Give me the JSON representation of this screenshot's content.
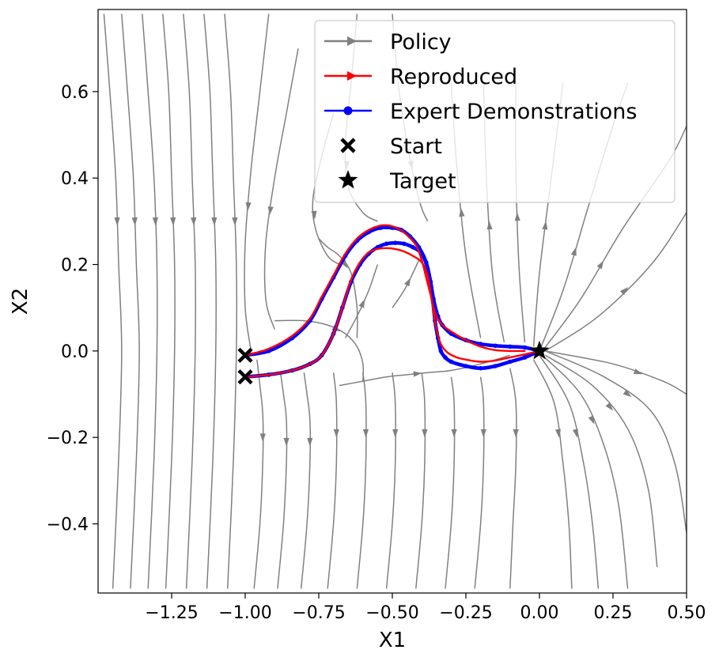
{
  "chart_data": {
    "type": "line",
    "title": "",
    "xlabel": "X1",
    "ylabel": "X2",
    "xlim": [
      -1.5,
      0.5
    ],
    "ylim": [
      -0.56,
      0.79
    ],
    "xticks": [
      -1.25,
      -1.0,
      -0.75,
      -0.5,
      -0.25,
      0.0,
      0.25,
      0.5
    ],
    "xtick_labels": [
      "−1.25",
      "−1.00",
      "−0.75",
      "−0.50",
      "−0.25",
      "0.00",
      "0.25",
      "0.50"
    ],
    "yticks": [
      0.6,
      0.4,
      0.2,
      0.0,
      -0.2,
      -0.4
    ],
    "ytick_labels": [
      "0.6",
      "0.4",
      "0.2",
      "0.0",
      "−0.2",
      "−0.4"
    ],
    "grid": false,
    "legend_position": "top-right",
    "colors": {
      "policy": "#808080",
      "reproduced": "#ff0000",
      "expert": "#0000ff",
      "markers": "#000000"
    },
    "legend": [
      {
        "key": "policy",
        "label": "Policy"
      },
      {
        "key": "reproduced",
        "label": "Reproduced"
      },
      {
        "key": "expert",
        "label": "Expert Demonstrations"
      },
      {
        "key": "start",
        "label": "Start"
      },
      {
        "key": "target",
        "label": "Target"
      }
    ],
    "series": [
      {
        "name": "Expert Demonstrations",
        "x": [
          -1.0,
          -0.92,
          -0.84,
          -0.78,
          -0.74,
          -0.7,
          -0.66,
          -0.62,
          -0.58,
          -0.54,
          -0.5,
          -0.47,
          -0.44,
          -0.41,
          -0.385,
          -0.37,
          -0.36,
          -0.345,
          -0.33,
          -0.3,
          -0.25,
          -0.2,
          -0.15,
          -0.1,
          -0.05,
          0.0
        ],
        "y": [
          -0.01,
          0.0,
          0.03,
          0.07,
          0.12,
          0.17,
          0.22,
          0.255,
          0.275,
          0.285,
          0.285,
          0.28,
          0.265,
          0.24,
          0.205,
          0.16,
          0.12,
          0.08,
          0.06,
          0.04,
          0.025,
          0.016,
          0.012,
          0.01,
          0.008,
          0.0
        ]
      },
      {
        "name": "Expert Demonstrations",
        "x": [
          -1.0,
          -0.92,
          -0.84,
          -0.78,
          -0.74,
          -0.7,
          -0.67,
          -0.64,
          -0.61,
          -0.58,
          -0.55,
          -0.52,
          -0.49,
          -0.46,
          -0.43,
          -0.4,
          -0.38,
          -0.365,
          -0.355,
          -0.345,
          -0.335,
          -0.32,
          -0.3,
          -0.25,
          -0.2,
          -0.15,
          -0.1,
          -0.05,
          0.0
        ],
        "y": [
          -0.06,
          -0.055,
          -0.045,
          -0.03,
          -0.01,
          0.04,
          0.1,
          0.16,
          0.2,
          0.225,
          0.24,
          0.248,
          0.25,
          0.248,
          0.24,
          0.225,
          0.19,
          0.13,
          0.07,
          0.03,
          0.0,
          -0.015,
          -0.025,
          -0.035,
          -0.04,
          -0.035,
          -0.025,
          -0.015,
          0.0
        ]
      },
      {
        "name": "Reproduced",
        "x": [
          -1.0,
          -0.92,
          -0.84,
          -0.78,
          -0.74,
          -0.7,
          -0.66,
          -0.62,
          -0.58,
          -0.54,
          -0.51,
          -0.48,
          -0.45,
          -0.42,
          -0.4,
          -0.385,
          -0.37,
          -0.36,
          -0.35,
          -0.33,
          -0.3,
          -0.25,
          -0.2,
          -0.15,
          -0.1,
          -0.05
        ],
        "y": [
          -0.01,
          0.005,
          0.035,
          0.075,
          0.125,
          0.175,
          0.225,
          0.26,
          0.28,
          0.29,
          0.29,
          0.283,
          0.268,
          0.245,
          0.21,
          0.17,
          0.13,
          0.1,
          0.08,
          0.06,
          0.045,
          0.025,
          0.01,
          0.002,
          0.0,
          0.0
        ]
      },
      {
        "name": "Reproduced",
        "x": [
          -1.0,
          -0.92,
          -0.84,
          -0.78,
          -0.74,
          -0.7,
          -0.67,
          -0.64,
          -0.61,
          -0.58,
          -0.55,
          -0.52,
          -0.49,
          -0.46,
          -0.43,
          -0.4,
          -0.38,
          -0.37,
          -0.36,
          -0.35,
          -0.34,
          -0.33,
          -0.31,
          -0.28,
          -0.25,
          -0.2,
          -0.15,
          -0.1,
          -0.05,
          0.0
        ],
        "y": [
          -0.06,
          -0.055,
          -0.045,
          -0.03,
          -0.01,
          0.04,
          0.1,
          0.165,
          0.205,
          0.228,
          0.236,
          0.238,
          0.236,
          0.23,
          0.22,
          0.205,
          0.175,
          0.135,
          0.09,
          0.05,
          0.025,
          0.01,
          -0.005,
          -0.015,
          -0.02,
          -0.025,
          -0.022,
          -0.015,
          -0.008,
          0.0
        ]
      }
    ],
    "start_points": [
      [
        -1.0,
        -0.01
      ],
      [
        -1.0,
        -0.06
      ]
    ],
    "target_point": [
      0.0,
      0.0
    ],
    "policy_streamlines": [
      {
        "x": [
          -1.48,
          -1.46,
          -1.44,
          -1.43,
          -1.42,
          -1.43,
          -1.45
        ],
        "y": [
          0.78,
          0.6,
          0.4,
          0.2,
          0.0,
          -0.25,
          -0.55
        ]
      },
      {
        "x": [
          -1.42,
          -1.4,
          -1.38,
          -1.37,
          -1.36,
          -1.37,
          -1.39
        ],
        "y": [
          0.78,
          0.6,
          0.4,
          0.2,
          0.0,
          -0.25,
          -0.55
        ]
      },
      {
        "x": [
          -1.35,
          -1.33,
          -1.31,
          -1.3,
          -1.3,
          -1.31,
          -1.33
        ],
        "y": [
          0.78,
          0.6,
          0.4,
          0.2,
          0.0,
          -0.25,
          -0.55
        ]
      },
      {
        "x": [
          -1.28,
          -1.26,
          -1.25,
          -1.24,
          -1.24,
          -1.25,
          -1.27
        ],
        "y": [
          0.78,
          0.6,
          0.4,
          0.2,
          0.0,
          -0.25,
          -0.55
        ]
      },
      {
        "x": [
          -1.21,
          -1.19,
          -1.18,
          -1.17,
          -1.17,
          -1.18,
          -1.2
        ],
        "y": [
          0.78,
          0.6,
          0.4,
          0.2,
          0.0,
          -0.25,
          -0.55
        ]
      },
      {
        "x": [
          -1.14,
          -1.12,
          -1.11,
          -1.1,
          -1.1,
          -1.11,
          -1.13
        ],
        "y": [
          0.78,
          0.6,
          0.4,
          0.2,
          0.0,
          -0.25,
          -0.55
        ]
      },
      {
        "x": [
          -1.07,
          -1.05,
          -1.04,
          -1.03,
          -1.03,
          -1.04,
          -1.06
        ],
        "y": [
          0.78,
          0.6,
          0.4,
          0.2,
          0.0,
          -0.25,
          -0.55
        ]
      },
      {
        "x": [
          -0.96,
          -0.95,
          -0.94,
          -0.94,
          -0.95,
          -0.97
        ],
        "y": [
          -0.02,
          -0.08,
          -0.15,
          -0.25,
          -0.4,
          -0.55
        ]
      },
      {
        "x": [
          -0.88,
          -0.87,
          -0.86,
          -0.86,
          -0.87,
          -0.89
        ],
        "y": [
          -0.05,
          -0.1,
          -0.16,
          -0.26,
          -0.4,
          -0.55
        ]
      },
      {
        "x": [
          -0.8,
          -0.79,
          -0.78,
          -0.78,
          -0.79,
          -0.81
        ],
        "y": [
          -0.05,
          -0.1,
          -0.16,
          -0.26,
          -0.4,
          -0.55
        ]
      },
      {
        "x": [
          -0.7,
          -0.69,
          -0.69,
          -0.7,
          -0.72
        ],
        "y": [
          -0.05,
          -0.12,
          -0.26,
          -0.4,
          -0.55
        ]
      },
      {
        "x": [
          -0.6,
          -0.59,
          -0.59,
          -0.6,
          -0.62
        ],
        "y": [
          -0.05,
          -0.12,
          -0.26,
          -0.4,
          -0.55
        ]
      },
      {
        "x": [
          -0.5,
          -0.49,
          -0.49,
          -0.5,
          -0.52
        ],
        "y": [
          -0.05,
          -0.12,
          -0.26,
          -0.4,
          -0.55
        ]
      },
      {
        "x": [
          -0.4,
          -0.39,
          -0.39,
          -0.4,
          -0.42
        ],
        "y": [
          -0.05,
          -0.12,
          -0.26,
          -0.4,
          -0.55
        ]
      },
      {
        "x": [
          -0.3,
          -0.29,
          -0.29,
          -0.3,
          -0.32
        ],
        "y": [
          -0.06,
          -0.12,
          -0.26,
          -0.4,
          -0.55
        ]
      },
      {
        "x": [
          -0.2,
          -0.19,
          -0.19,
          -0.2,
          -0.22
        ],
        "y": [
          -0.06,
          -0.12,
          -0.26,
          -0.4,
          -0.55
        ]
      },
      {
        "x": [
          -0.1,
          -0.08,
          -0.08,
          -0.09,
          -0.1
        ],
        "y": [
          -0.04,
          -0.12,
          -0.26,
          -0.4,
          -0.55
        ]
      },
      {
        "x": [
          -0.02,
          0.05,
          0.08,
          0.1,
          0.11
        ],
        "y": [
          -0.02,
          -0.12,
          -0.26,
          -0.4,
          -0.55
        ]
      },
      {
        "x": [
          0.0,
          0.1,
          0.15,
          0.18,
          0.2
        ],
        "y": [
          -0.01,
          -0.12,
          -0.26,
          -0.4,
          -0.55
        ]
      },
      {
        "x": [
          0.01,
          0.14,
          0.22,
          0.27,
          0.3
        ],
        "y": [
          -0.01,
          -0.1,
          -0.22,
          -0.36,
          -0.55
        ]
      },
      {
        "x": [
          0.02,
          0.18,
          0.3,
          0.37,
          0.4
        ],
        "y": [
          -0.01,
          -0.08,
          -0.18,
          -0.32,
          -0.5
        ]
      },
      {
        "x": [
          0.02,
          0.22,
          0.38,
          0.46,
          0.5
        ],
        "y": [
          0.0,
          -0.06,
          -0.14,
          -0.26,
          -0.42
        ]
      },
      {
        "x": [
          0.02,
          0.25,
          0.42,
          0.5
        ],
        "y": [
          0.0,
          -0.03,
          -0.07,
          -0.1
        ]
      },
      {
        "x": [
          0.02,
          0.2,
          0.38,
          0.5
        ],
        "y": [
          0.0,
          0.08,
          0.2,
          0.32
        ]
      },
      {
        "x": [
          0.01,
          0.14,
          0.28,
          0.44,
          0.5
        ],
        "y": [
          0.0,
          0.12,
          0.28,
          0.44,
          0.52
        ]
      },
      {
        "x": [
          0.0,
          0.08,
          0.16,
          0.24,
          0.3
        ],
        "y": [
          0.0,
          0.14,
          0.32,
          0.5,
          0.62
        ]
      },
      {
        "x": [
          -0.02,
          0.0,
          0.04,
          0.08
        ],
        "y": [
          0.01,
          0.18,
          0.4,
          0.62
        ]
      },
      {
        "x": [
          -0.05,
          -0.07,
          -0.08,
          -0.08
        ],
        "y": [
          0.02,
          0.2,
          0.42,
          0.62
        ]
      },
      {
        "x": [
          -0.12,
          -0.16,
          -0.18,
          -0.19
        ],
        "y": [
          0.02,
          0.18,
          0.4,
          0.62
        ]
      },
      {
        "x": [
          -0.2,
          -0.25,
          -0.28,
          -0.3
        ],
        "y": [
          0.03,
          0.22,
          0.42,
          0.62
        ]
      },
      {
        "x": [
          -0.7,
          -0.74,
          -0.77,
          -0.76,
          -0.72,
          -0.68
        ],
        "y": [
          0.55,
          0.45,
          0.35,
          0.28,
          0.22,
          0.2
        ]
      },
      {
        "x": [
          -0.82,
          -0.86,
          -0.9,
          -0.93,
          -0.93,
          -0.9
        ],
        "y": [
          0.7,
          0.55,
          0.4,
          0.25,
          0.12,
          0.05
        ]
      },
      {
        "x": [
          -0.92,
          -0.95,
          -0.98,
          -1.0,
          -1.0,
          -0.98
        ],
        "y": [
          0.78,
          0.6,
          0.42,
          0.25,
          0.1,
          0.0
        ]
      },
      {
        "x": [
          -0.62,
          -0.64,
          -0.66,
          -0.65,
          -0.6,
          -0.55
        ],
        "y": [
          0.78,
          0.62,
          0.48,
          0.38,
          0.32,
          0.3
        ]
      },
      {
        "x": [
          -0.5,
          -0.48,
          -0.45,
          -0.42,
          -0.4,
          -0.38
        ],
        "y": [
          0.78,
          0.62,
          0.48,
          0.38,
          0.33,
          0.3
        ]
      },
      {
        "x": [
          -0.75,
          -0.72,
          -0.68,
          -0.64,
          -0.62,
          -0.62
        ],
        "y": [
          0.26,
          0.24,
          0.22,
          0.18,
          0.1,
          0.03
        ]
      },
      {
        "x": [
          -0.66,
          -0.62,
          -0.58,
          -0.56,
          -0.55
        ],
        "y": [
          0.03,
          0.08,
          0.14,
          0.18,
          0.2
        ]
      },
      {
        "x": [
          -0.5,
          -0.46,
          -0.43,
          -0.41
        ],
        "y": [
          0.1,
          0.14,
          0.18,
          0.21
        ]
      },
      {
        "x": [
          -0.68,
          -0.6,
          -0.52,
          -0.45,
          -0.38,
          -0.3,
          -0.2,
          -0.1
        ],
        "y": [
          -0.08,
          -0.07,
          -0.06,
          -0.055,
          -0.05,
          -0.045,
          -0.03,
          -0.01
        ]
      },
      {
        "x": [
          -0.9,
          -0.8,
          -0.72,
          -0.66,
          -0.62,
          -0.6,
          -0.6
        ],
        "y": [
          0.07,
          0.07,
          0.06,
          0.04,
          0.01,
          -0.03,
          -0.07
        ]
      }
    ]
  }
}
